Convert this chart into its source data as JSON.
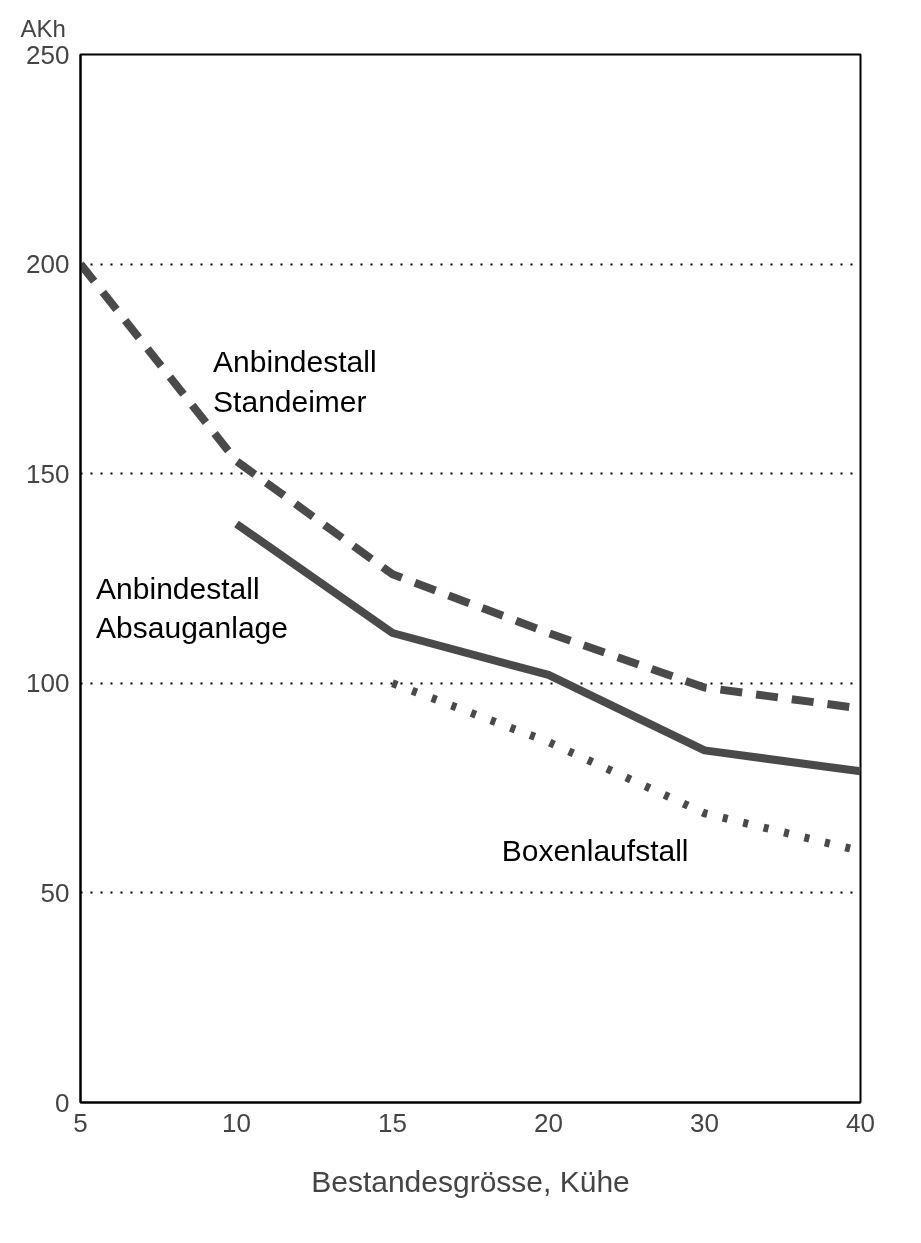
{
  "chart_data": {
    "type": "line",
    "xlabel": "Bestandesgrösse, Kühe",
    "ylabel": "AKh",
    "categories": [
      "5",
      "10",
      "15",
      "20",
      "30",
      "40"
    ],
    "ylim": [
      0,
      250
    ],
    "yticks": [
      0,
      50,
      100,
      150,
      200,
      250
    ],
    "grid": "y",
    "series": [
      {
        "name": "Anbindestall Standeimer",
        "color": "#4a4a4a",
        "line_style": "dashed",
        "values": [
          200,
          153,
          126,
          112,
          99,
          94
        ]
      },
      {
        "name": "Anbindestall Absauganlage",
        "color": "#4a4a4a",
        "line_style": "solid",
        "values": [
          null,
          138,
          112,
          102,
          84,
          79
        ]
      },
      {
        "name": "Boxenlaufstall",
        "color": "#4a4a4a",
        "line_style": "dotted",
        "values": [
          null,
          null,
          100,
          86,
          69,
          60
        ]
      }
    ]
  }
}
